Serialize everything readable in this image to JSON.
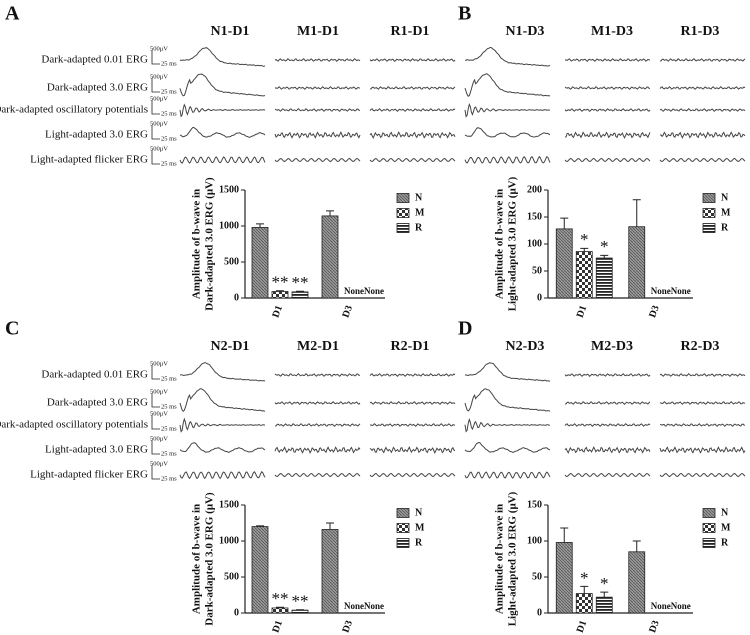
{
  "panels": [
    {
      "letter": "A",
      "columns": [
        "N1-D1",
        "M1-D1",
        "R1-D1"
      ],
      "trace_labels": [
        "Dark-adapted 0.01 ERG",
        "Dark-adapted 3.0 ERG",
        "Dark-adapted oscillatory potentials",
        "Light-adapted 3.0 ERG",
        "Light-adapted flicker ERG"
      ],
      "scale_amplitude": "500μV",
      "scale_time": "25 ms"
    },
    {
      "letter": "B",
      "columns": [
        "N1-D3",
        "M1-D3",
        "R1-D3"
      ]
    },
    {
      "letter": "C",
      "columns": [
        "N2-D1",
        "M2-D1",
        "R2-D1"
      ],
      "trace_labels": [
        "Dark-adapted 0.01 ERG",
        "Dark-adapted 3.0 ERG",
        "Dark-adapted oscillatory potentials",
        "Light-adapted 3.0 ERG",
        "Light-adapted flicker ERG"
      ],
      "scale_amplitude": "500μV",
      "scale_time": "25 ms"
    },
    {
      "letter": "D",
      "columns": [
        "N2-D3",
        "M2-D3",
        "R2-D3"
      ]
    }
  ],
  "chart_data": [
    {
      "type": "bar",
      "y_label": [
        "Amplitude of b-wave in",
        "Dark-adapted 3.0 ERG (μV)"
      ],
      "categories": [
        "D1",
        "D3"
      ],
      "ylim": [
        0,
        1500
      ],
      "yticks": [
        0,
        500,
        1000,
        1500
      ],
      "series": [
        {
          "name": "N",
          "pattern": "grid",
          "values": [
            980,
            1140
          ],
          "errors": [
            50,
            70
          ]
        },
        {
          "name": "M",
          "pattern": "check",
          "values": [
            90,
            null
          ],
          "errors": [
            10,
            null
          ],
          "annotations": [
            "**",
            "None"
          ]
        },
        {
          "name": "R",
          "pattern": "stripes",
          "values": [
            85,
            null
          ],
          "errors": [
            8,
            null
          ],
          "annotations": [
            "**",
            "None"
          ]
        }
      ]
    },
    {
      "type": "bar",
      "y_label": [
        "Amplitude of b-wave in",
        "Light-adapted 3.0 ERG (μV)"
      ],
      "categories": [
        "D1",
        "D3"
      ],
      "ylim": [
        0,
        200
      ],
      "yticks": [
        0,
        50,
        100,
        150,
        200
      ],
      "series": [
        {
          "name": "N",
          "pattern": "grid",
          "values": [
            128,
            132
          ],
          "errors": [
            20,
            50
          ]
        },
        {
          "name": "M",
          "pattern": "check",
          "values": [
            86,
            null
          ],
          "errors": [
            6,
            null
          ],
          "annotations": [
            "*",
            "None"
          ]
        },
        {
          "name": "R",
          "pattern": "stripes",
          "values": [
            74,
            null
          ],
          "errors": [
            5,
            null
          ],
          "annotations": [
            "*",
            "None"
          ]
        }
      ]
    },
    {
      "type": "bar",
      "y_label": [
        "Amplitude of b-wave in",
        "Dark-adapted 3.0 ERG (μV)"
      ],
      "categories": [
        "D1",
        "D3"
      ],
      "ylim": [
        0,
        1500
      ],
      "yticks": [
        0,
        500,
        1000,
        1500
      ],
      "series": [
        {
          "name": "N",
          "pattern": "grid",
          "values": [
            1200,
            1160
          ],
          "errors": [
            10,
            90
          ]
        },
        {
          "name": "M",
          "pattern": "check",
          "values": [
            70,
            null
          ],
          "errors": [
            10,
            null
          ],
          "annotations": [
            "**",
            "None"
          ]
        },
        {
          "name": "R",
          "pattern": "stripes",
          "values": [
            40,
            null
          ],
          "errors": [
            5,
            null
          ],
          "annotations": [
            "**",
            "None"
          ]
        }
      ]
    },
    {
      "type": "bar",
      "y_label": [
        "Amplitude of b-wave in",
        "Light-adapted 3.0 ERG (μV)"
      ],
      "categories": [
        "D1",
        "D3"
      ],
      "ylim": [
        0,
        150
      ],
      "yticks": [
        0,
        50,
        100,
        150
      ],
      "series": [
        {
          "name": "N",
          "pattern": "grid",
          "values": [
            98,
            85
          ],
          "errors": [
            20,
            15
          ]
        },
        {
          "name": "M",
          "pattern": "check",
          "values": [
            27,
            null
          ],
          "errors": [
            10,
            null
          ],
          "annotations": [
            "*",
            "None"
          ]
        },
        {
          "name": "R",
          "pattern": "stripes",
          "values": [
            22,
            null
          ],
          "errors": [
            7,
            null
          ],
          "annotations": [
            "*",
            "None"
          ]
        }
      ]
    }
  ]
}
